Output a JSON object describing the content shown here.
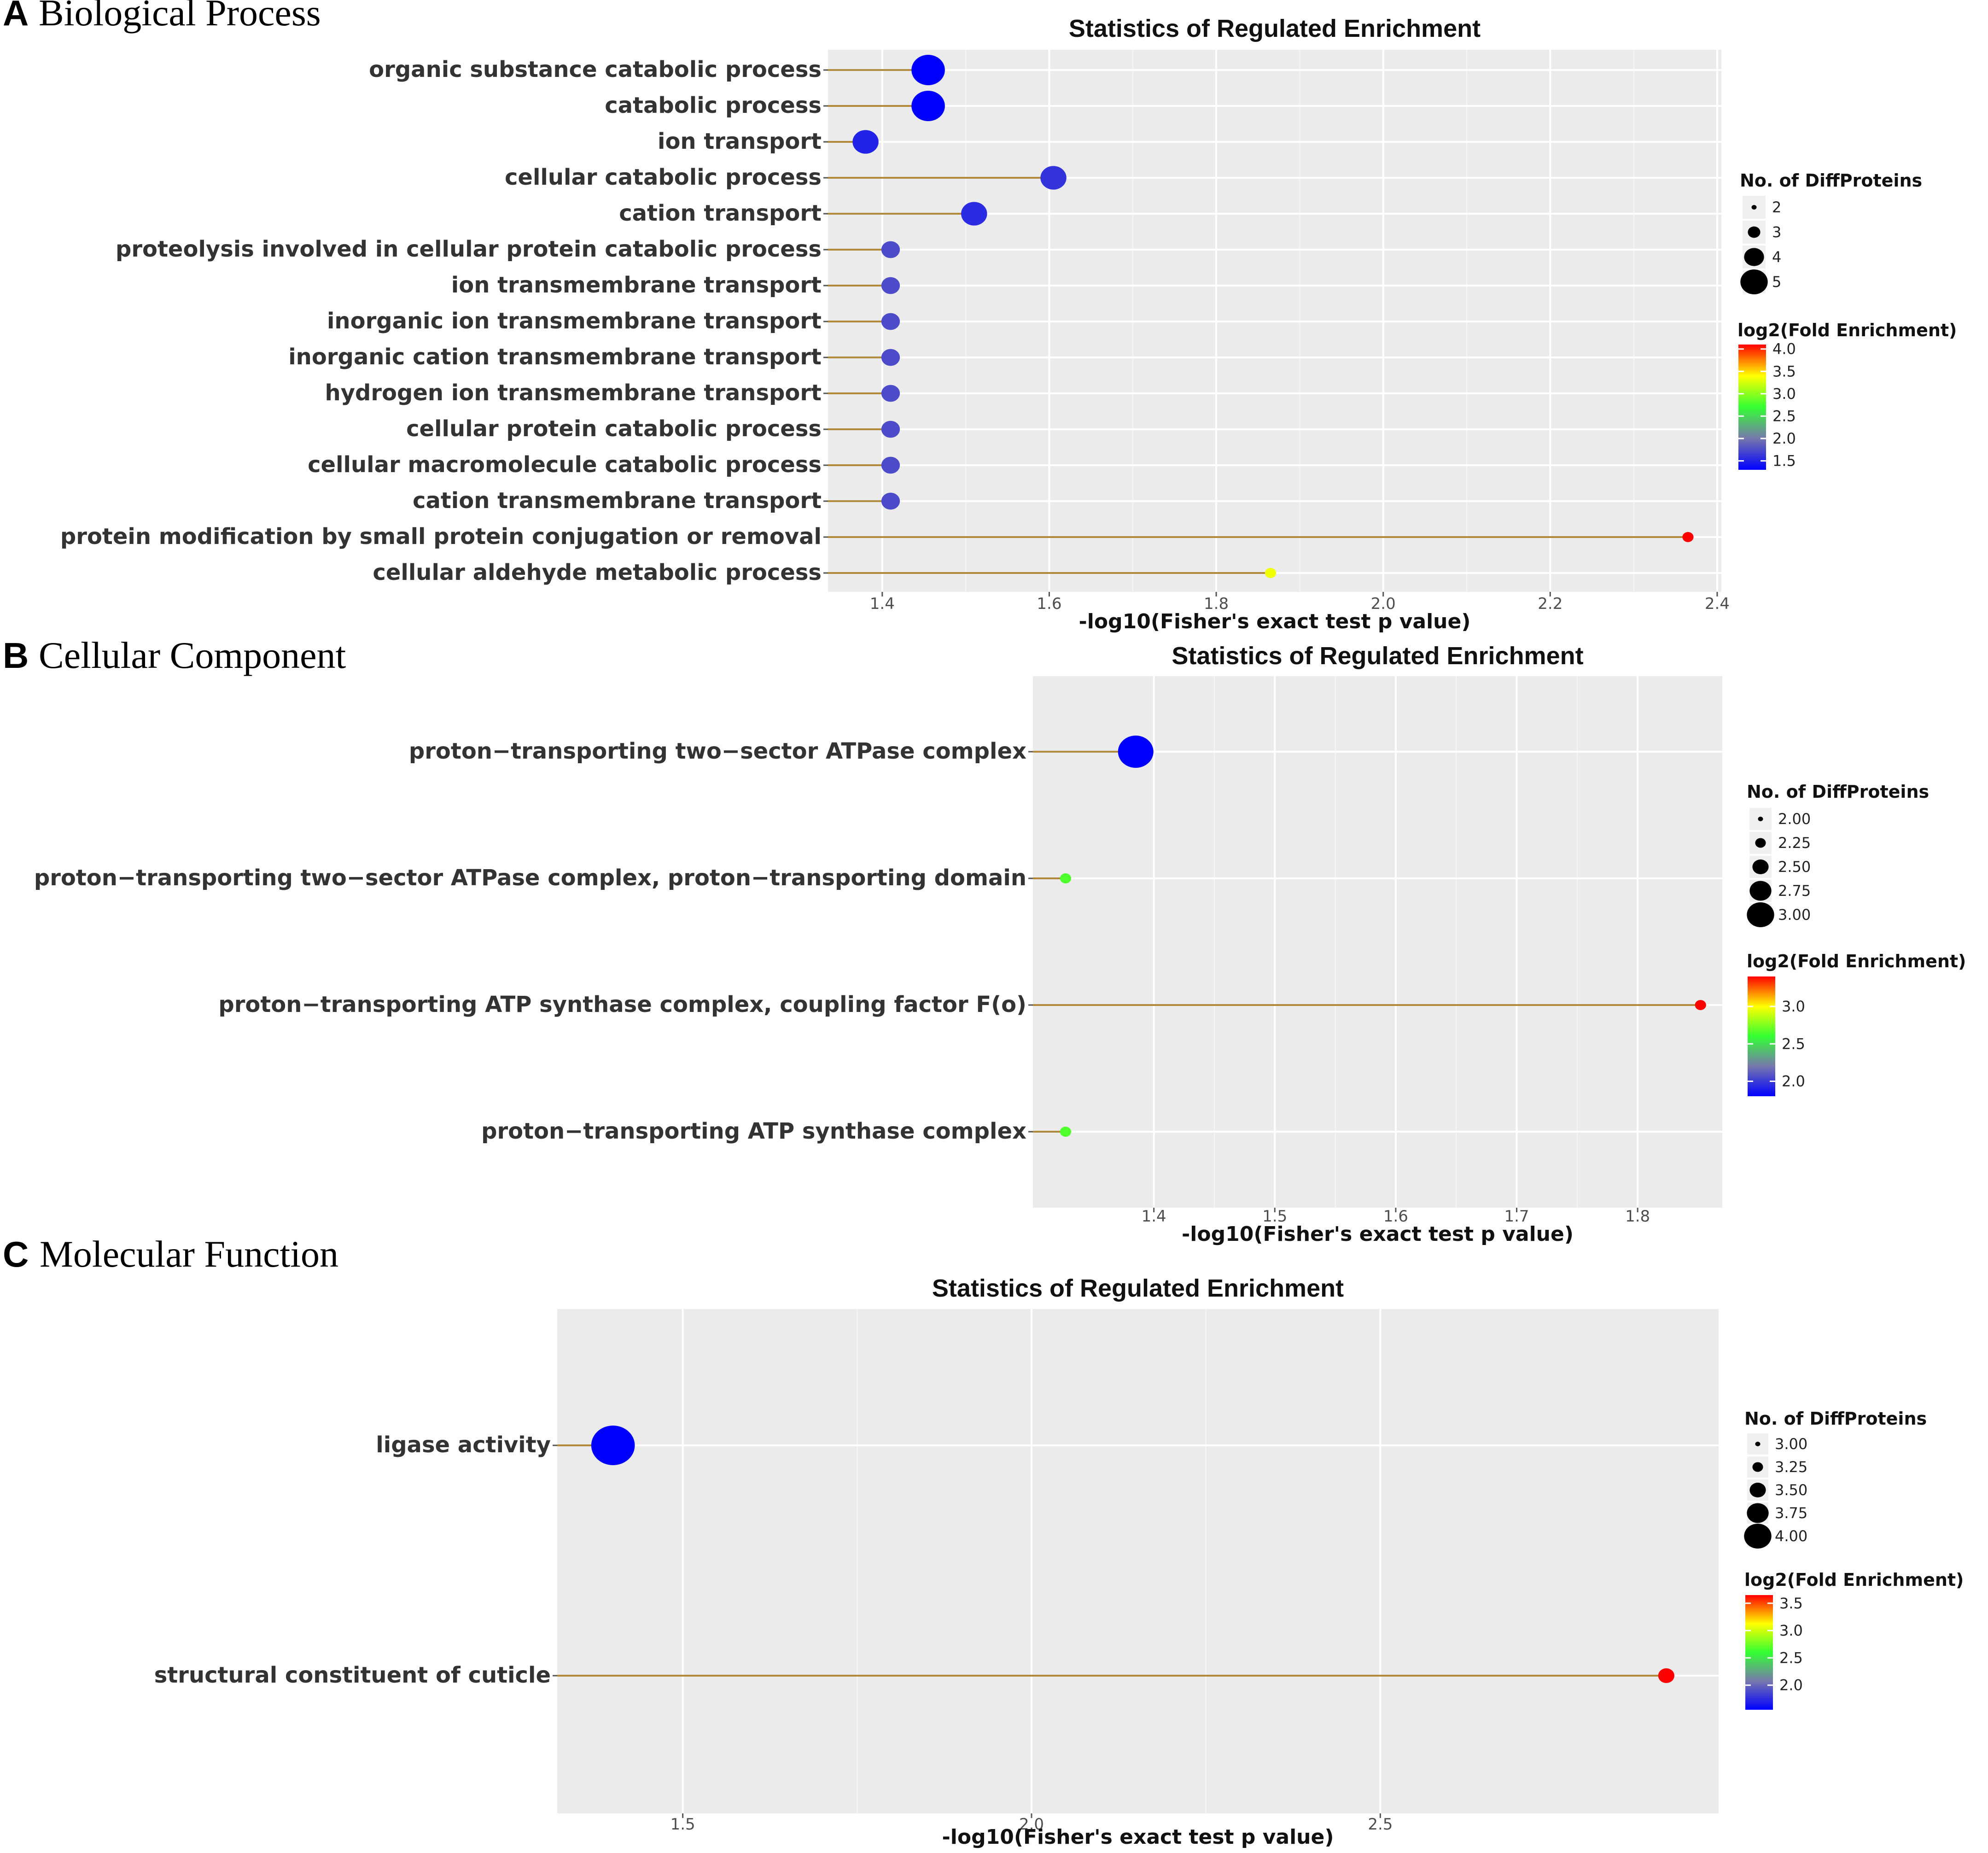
{
  "colors": {
    "panel_bg": "#ebebeb",
    "grid_major": "#ffffff",
    "stem": "#b08a3a",
    "scale": [
      "#0000ff",
      "#7777ad",
      "#33ff33",
      "#ffff00",
      "#ff0000"
    ]
  },
  "chart_data": [
    {
      "type": "scatter",
      "panel_letter": "A",
      "panel_name": "Biological Process",
      "title": "Statistics of Regulated Enrichment",
      "xlabel": "-log10(Fisher's exact test p value)",
      "xlim": [
        1.335,
        2.405
      ],
      "xticks": [
        1.4,
        1.6,
        1.8,
        2.0,
        2.2,
        2.4
      ],
      "xtick_labels": [
        "1.4",
        "1.6",
        "1.8",
        "2.0",
        "2.2",
        "2.4"
      ],
      "categories": [
        "organic substance catabolic process",
        "catabolic process",
        "ion transport",
        "cellular catabolic process",
        "cation transport",
        "proteolysis involved in cellular protein catabolic process",
        "ion transmembrane transport",
        "inorganic ion transmembrane transport",
        "inorganic cation transmembrane transport",
        "hydrogen ion transmembrane transport",
        "cellular protein catabolic process",
        "cellular macromolecule catabolic process",
        "cation transmembrane transport",
        "protein modification by small protein conjugation or removal",
        "cellular aldehyde metabolic process"
      ],
      "x": [
        1.455,
        1.455,
        1.38,
        1.605,
        1.51,
        1.41,
        1.41,
        1.41,
        1.41,
        1.41,
        1.41,
        1.41,
        1.41,
        2.365,
        1.865
      ],
      "size": [
        5,
        5,
        4,
        4,
        4,
        3,
        3,
        3,
        3,
        3,
        3,
        3,
        3,
        2,
        2
      ],
      "color": [
        1.3,
        1.3,
        1.5,
        1.6,
        1.55,
        1.75,
        1.75,
        1.75,
        1.75,
        1.75,
        1.75,
        1.75,
        1.75,
        4.1,
        3.35
      ],
      "size_legend": {
        "title": "No. of DiffProteins",
        "values": [
          2,
          3,
          4,
          5
        ],
        "labels": [
          "2",
          "3",
          "4",
          "5"
        ]
      },
      "color_legend": {
        "title": "log2(Fold Enrichment)",
        "min": 1.3,
        "max": 4.1,
        "breaks": [
          4.0,
          3.5,
          3.0,
          2.5,
          2.0,
          1.5
        ],
        "labels": [
          "4.0",
          "3.5",
          "3.0",
          "2.5",
          "2.0",
          "1.5"
        ]
      }
    },
    {
      "type": "scatter",
      "panel_letter": "B",
      "panel_name": "Cellular Component",
      "title": "Statistics of Regulated Enrichment",
      "xlabel": "-log10(Fisher's exact test p value)",
      "xlim": [
        1.3,
        1.87
      ],
      "xticks": [
        1.4,
        1.5,
        1.6,
        1.7,
        1.8
      ],
      "xtick_labels": [
        "1.4",
        "1.5",
        "1.6",
        "1.7",
        "1.8"
      ],
      "categories": [
        "proton−transporting two−sector ATPase complex",
        "proton−transporting two−sector ATPase complex, proton−transporting domain",
        "proton−transporting ATP synthase complex, coupling factor F(o)",
        "proton−transporting ATP synthase complex"
      ],
      "x": [
        1.385,
        1.327,
        1.852,
        1.327
      ],
      "size": [
        3,
        2,
        2,
        2
      ],
      "color": [
        1.8,
        2.65,
        3.4,
        2.65
      ],
      "size_legend": {
        "title": "No. of DiffProteins",
        "values": [
          2.0,
          2.25,
          2.5,
          2.75,
          3.0
        ],
        "labels": [
          "2.00",
          "2.25",
          "2.50",
          "2.75",
          "3.00"
        ]
      },
      "color_legend": {
        "title": "log2(Fold Enrichment)",
        "min": 1.8,
        "max": 3.4,
        "breaks": [
          3.0,
          2.5,
          2.0
        ],
        "labels": [
          "3.0",
          "2.5",
          "2.0"
        ]
      }
    },
    {
      "type": "scatter",
      "panel_letter": "C",
      "panel_name": "Molecular Function",
      "title": "Statistics of Regulated Enrichment",
      "xlabel": "-log10(Fisher's exact test p value)",
      "xlim": [
        1.32,
        2.985
      ],
      "xticks": [
        1.5,
        2.0,
        2.5
      ],
      "xtick_labels": [
        "1.5",
        "2.0",
        "2.5"
      ],
      "categories": [
        "ligase activity",
        "structural constituent of cuticle"
      ],
      "x": [
        1.4,
        2.91
      ],
      "size": [
        4,
        3
      ],
      "color": [
        1.55,
        3.65
      ],
      "size_legend": {
        "title": "No. of DiffProteins",
        "values": [
          3.0,
          3.25,
          3.5,
          3.75,
          4.0
        ],
        "labels": [
          "3.00",
          "3.25",
          "3.50",
          "3.75",
          "4.00"
        ]
      },
      "color_legend": {
        "title": "log2(Fold Enrichment)",
        "min": 1.55,
        "max": 3.65,
        "breaks": [
          3.5,
          3.0,
          2.5,
          2.0
        ],
        "labels": [
          "3.5",
          "3.0",
          "2.5",
          "2.0"
        ]
      }
    }
  ]
}
